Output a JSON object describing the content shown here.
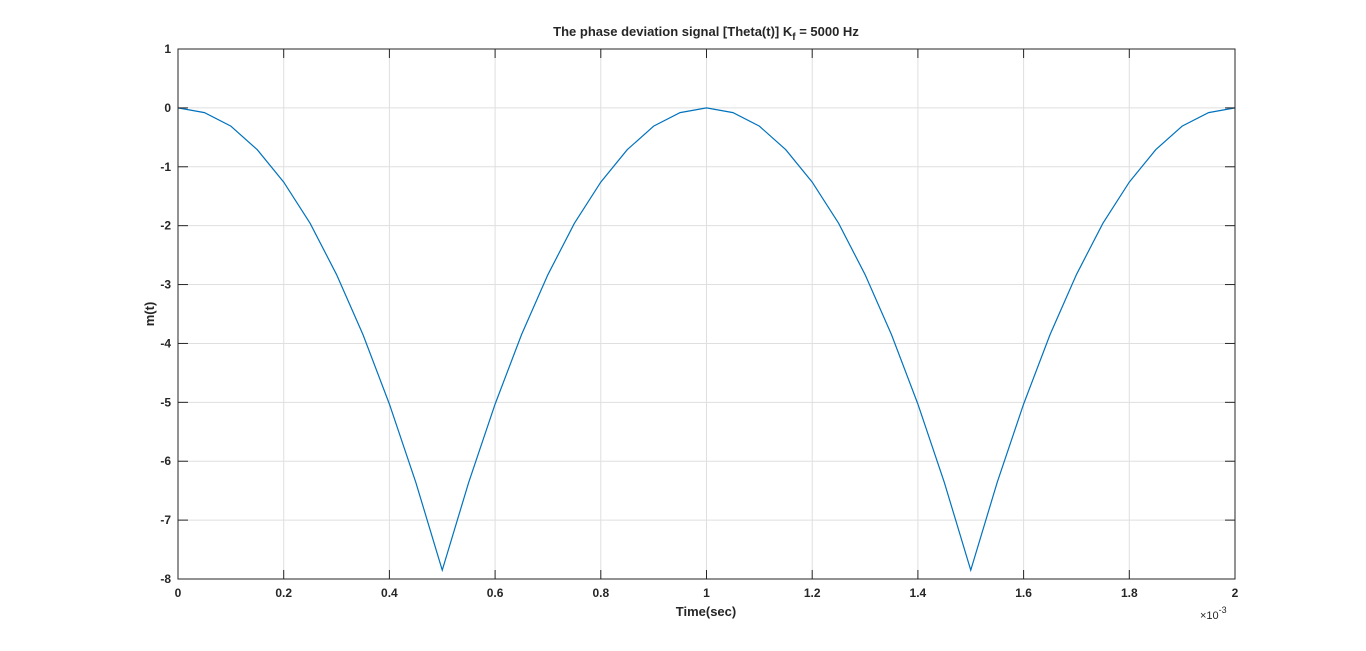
{
  "chart_data": {
    "type": "line",
    "title": "The phase deviation signal [Theta(t)] K",
    "title_subscript": "f",
    "title_suffix": " = 5000 Hz",
    "xlabel": "Time(sec)",
    "ylabel": "m(t)",
    "x_multiplier_base": "×10",
    "x_multiplier_exponent": "-3",
    "xlim": [
      0,
      2
    ],
    "ylim": [
      -8,
      1
    ],
    "x_ticks": [
      0,
      0.2,
      0.4,
      0.6,
      0.8,
      1,
      1.2,
      1.4,
      1.6,
      1.8,
      2
    ],
    "x_tick_labels": [
      "0",
      "0.2",
      "0.4",
      "0.6",
      "0.8",
      "1",
      "1.2",
      "1.4",
      "1.6",
      "1.8",
      "2"
    ],
    "y_ticks": [
      1,
      0,
      -1,
      -2,
      -3,
      -4,
      -5,
      -6,
      -7,
      -8
    ],
    "y_tick_labels": [
      "1",
      "0",
      "-1",
      "-2",
      "-3",
      "-4",
      "-5",
      "-6",
      "-7",
      "-8"
    ],
    "grid": true,
    "line_color": "#0072bd",
    "series": [
      {
        "x": [
          0,
          0.05,
          0.1,
          0.15,
          0.2,
          0.25,
          0.3,
          0.35,
          0.4,
          0.45,
          0.5,
          0.55,
          0.6,
          0.65,
          0.7,
          0.75,
          0.8,
          0.85,
          0.9,
          0.95,
          1.0,
          1.05,
          1.1,
          1.15,
          1.2,
          1.25,
          1.3,
          1.35,
          1.4,
          1.45,
          1.5,
          1.55,
          1.6,
          1.65,
          1.7,
          1.75,
          1.8,
          1.85,
          1.9,
          1.95,
          2.0
        ],
        "y": [
          0,
          -0.08,
          -0.31,
          -0.71,
          -1.26,
          -1.96,
          -2.83,
          -3.85,
          -5.03,
          -6.36,
          -7.85,
          -6.36,
          -5.03,
          -3.85,
          -2.83,
          -1.96,
          -1.26,
          -0.71,
          -0.31,
          -0.08,
          0,
          -0.08,
          -0.31,
          -0.71,
          -1.26,
          -1.96,
          -2.83,
          -3.85,
          -5.03,
          -6.36,
          -7.85,
          -6.36,
          -5.03,
          -3.85,
          -2.83,
          -1.96,
          -1.26,
          -0.71,
          -0.31,
          -0.08,
          0
        ]
      }
    ]
  }
}
